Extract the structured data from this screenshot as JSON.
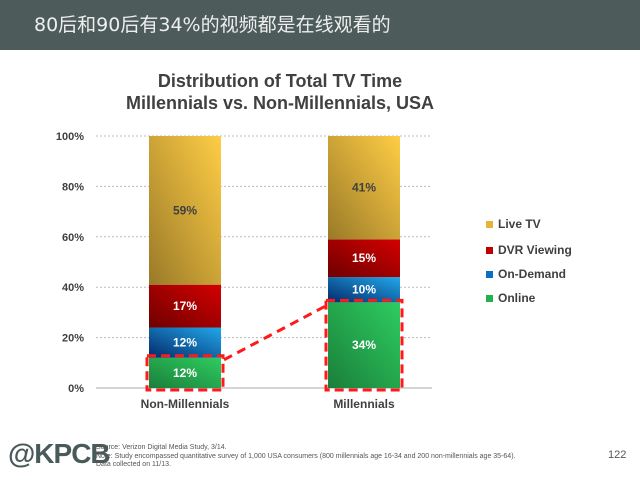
{
  "header": {
    "title": "80后和90后有34%的视频都是在线观看的"
  },
  "chart_data": {
    "type": "bar",
    "stacked": true,
    "title": "Distribution of Total TV Time",
    "subtitle": "Millennials vs. Non-Millennials, USA",
    "categories": [
      "Non-Millennials",
      "Millennials"
    ],
    "series": [
      {
        "name": "Online",
        "values": [
          12,
          34
        ],
        "labels": [
          "12%",
          "34%"
        ],
        "color": "#22b14c"
      },
      {
        "name": "On-Demand",
        "values": [
          12,
          10
        ],
        "labels": [
          "12%",
          "10%"
        ],
        "color": "#0a6fc0"
      },
      {
        "name": "DVR Viewing",
        "values": [
          17,
          15
        ],
        "labels": [
          "17%",
          "15%"
        ],
        "color": "#c00000"
      },
      {
        "name": "Live TV",
        "values": [
          59,
          41
        ],
        "labels": [
          "59%",
          "41%"
        ],
        "color": "#e6b43a"
      }
    ],
    "ylim": [
      0,
      100
    ],
    "yticks": [
      "0%",
      "20%",
      "40%",
      "60%",
      "80%",
      "100%"
    ],
    "grid": true,
    "legend": "right",
    "highlight": "Online segments outlined with red dashed boxes, connected by a red dashed line"
  },
  "footer": {
    "logo": "@KPCB",
    "source": "Source: Verizon Digital Media Study, 3/14.",
    "note": "Note: Study encompassed quantitative survey of 1,000 USA consumers (800 millennials age 16-34 and 200 non-millennials age 35-64).",
    "collected": "Data collected on 11/13.",
    "page": "122"
  }
}
